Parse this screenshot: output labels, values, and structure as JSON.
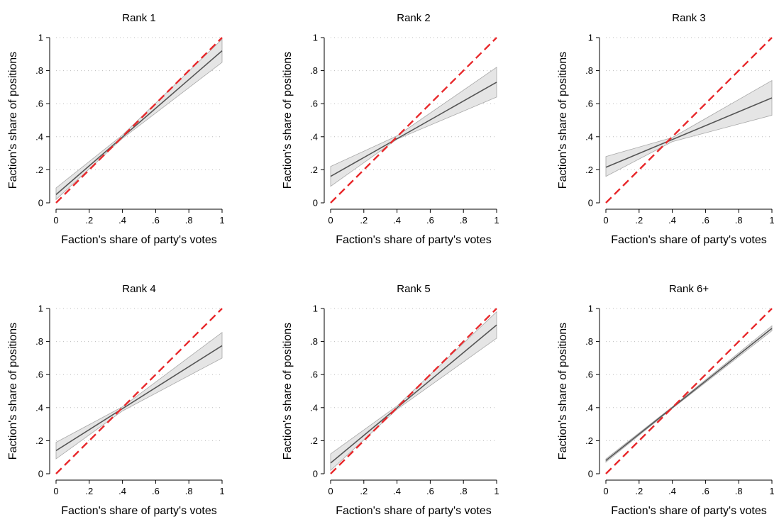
{
  "colors": {
    "fit_line": "#555555",
    "ci_fill": "#e5e5e5",
    "ci_edge": "#a8a8a8",
    "diagonal": "#e8282b",
    "grid": "#bdbdbd",
    "axis": "#000000"
  },
  "chart_data": [
    {
      "type": "line",
      "title": "Rank 1",
      "xlabel": "Faction's share of party's votes",
      "ylabel": "Faction's share of positions",
      "xlim": [
        0,
        1
      ],
      "ylim": [
        0,
        1
      ],
      "xticks": [
        "0",
        ".2",
        ".4",
        ".6",
        ".8",
        "1"
      ],
      "yticks": [
        "0",
        ".2",
        ".4",
        ".6",
        ".8",
        "1"
      ],
      "grid": "horizontal dotted",
      "series": [
        {
          "role": "fitted line",
          "x": [
            0,
            1
          ],
          "y": [
            0.05,
            0.92
          ]
        },
        {
          "role": "confidence band",
          "x": [
            0,
            0.4,
            1
          ],
          "lower": [
            0.02,
            0.39,
            0.85
          ],
          "upper": [
            0.09,
            0.41,
            0.99
          ]
        },
        {
          "role": "45-degree line",
          "x": [
            0,
            1
          ],
          "y": [
            0,
            1
          ]
        }
      ]
    },
    {
      "type": "line",
      "title": "Rank 2",
      "xlabel": "Faction's share of party's votes",
      "ylabel": "Faction's share of positions",
      "xlim": [
        0,
        1
      ],
      "ylim": [
        0,
        1
      ],
      "xticks": [
        "0",
        ".2",
        ".4",
        ".6",
        ".8",
        "1"
      ],
      "yticks": [
        "0",
        ".2",
        ".4",
        ".6",
        ".8",
        "1"
      ],
      "grid": "horizontal dotted",
      "series": [
        {
          "role": "fitted line",
          "x": [
            0,
            1
          ],
          "y": [
            0.16,
            0.73
          ]
        },
        {
          "role": "confidence band",
          "x": [
            0,
            0.4,
            1
          ],
          "lower": [
            0.1,
            0.385,
            0.64
          ],
          "upper": [
            0.22,
            0.405,
            0.82
          ]
        },
        {
          "role": "45-degree line",
          "x": [
            0,
            1
          ],
          "y": [
            0,
            1
          ]
        }
      ]
    },
    {
      "type": "line",
      "title": "Rank 3",
      "xlabel": "Faction's share of party's votes",
      "ylabel": "Faction's share of positions",
      "xlim": [
        0,
        1
      ],
      "ylim": [
        0,
        1
      ],
      "xticks": [
        "0",
        ".2",
        ".4",
        ".6",
        ".8",
        "1"
      ],
      "yticks": [
        "0",
        ".2",
        ".4",
        ".6",
        ".8",
        "1"
      ],
      "grid": "horizontal dotted",
      "series": [
        {
          "role": "fitted line",
          "x": [
            0,
            1
          ],
          "y": [
            0.215,
            0.635
          ]
        },
        {
          "role": "confidence band",
          "x": [
            0,
            0.4,
            1
          ],
          "lower": [
            0.16,
            0.37,
            0.53
          ],
          "upper": [
            0.28,
            0.395,
            0.74
          ]
        },
        {
          "role": "45-degree line",
          "x": [
            0,
            1
          ],
          "y": [
            0,
            1
          ]
        }
      ]
    },
    {
      "type": "line",
      "title": "Rank 4",
      "xlabel": "Faction's share of party's votes",
      "ylabel": "Faction's share of positions",
      "xlim": [
        0,
        1
      ],
      "ylim": [
        0,
        1
      ],
      "xticks": [
        "0",
        ".2",
        ".4",
        ".6",
        ".8",
        "1"
      ],
      "yticks": [
        "0",
        ".2",
        ".4",
        ".6",
        ".8",
        "1"
      ],
      "grid": "horizontal dotted",
      "series": [
        {
          "role": "fitted line",
          "x": [
            0,
            1
          ],
          "y": [
            0.14,
            0.775
          ]
        },
        {
          "role": "confidence band",
          "x": [
            0,
            0.4,
            1
          ],
          "lower": [
            0.09,
            0.38,
            0.7
          ],
          "upper": [
            0.19,
            0.405,
            0.855
          ]
        },
        {
          "role": "45-degree line",
          "x": [
            0,
            1
          ],
          "y": [
            0,
            1
          ]
        }
      ]
    },
    {
      "type": "line",
      "title": "Rank 5",
      "xlabel": "Faction's share of party's votes",
      "ylabel": "Faction's share of positions",
      "xlim": [
        0,
        1
      ],
      "ylim": [
        0,
        1
      ],
      "xticks": [
        "0",
        ".2",
        ".4",
        ".6",
        ".8",
        "1"
      ],
      "yticks": [
        "0",
        ".2",
        ".4",
        ".6",
        ".8",
        "1"
      ],
      "grid": "horizontal dotted",
      "series": [
        {
          "role": "fitted line",
          "x": [
            0,
            1
          ],
          "y": [
            0.065,
            0.9
          ]
        },
        {
          "role": "confidence band",
          "x": [
            0,
            0.4,
            1
          ],
          "lower": [
            0.02,
            0.39,
            0.82
          ],
          "upper": [
            0.12,
            0.41,
            0.98
          ]
        },
        {
          "role": "45-degree line",
          "x": [
            0,
            1
          ],
          "y": [
            0,
            1
          ]
        }
      ]
    },
    {
      "type": "line",
      "title": "Rank 6+",
      "xlabel": "Faction's share of party's votes",
      "ylabel": "Faction's share of positions",
      "xlim": [
        0,
        1
      ],
      "ylim": [
        0,
        1
      ],
      "xticks": [
        "0",
        ".2",
        ".4",
        ".6",
        ".8",
        "1"
      ],
      "yticks": [
        "0",
        ".2",
        ".4",
        ".6",
        ".8",
        "1"
      ],
      "grid": "horizontal dotted",
      "series": [
        {
          "role": "fitted line",
          "x": [
            0,
            1
          ],
          "y": [
            0.08,
            0.88
          ]
        },
        {
          "role": "confidence band",
          "x": [
            0,
            0.4,
            1
          ],
          "lower": [
            0.07,
            0.395,
            0.865
          ],
          "upper": [
            0.09,
            0.405,
            0.895
          ]
        },
        {
          "role": "45-degree line",
          "x": [
            0,
            1
          ],
          "y": [
            0,
            1
          ]
        }
      ]
    }
  ]
}
